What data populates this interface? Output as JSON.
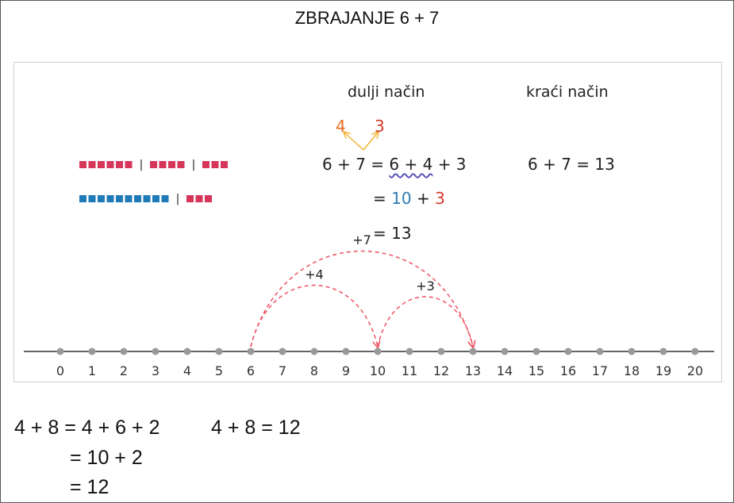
{
  "title": "ZBRAJANJE 6 + 7",
  "panel": {
    "long_way_label": "dulji način",
    "short_way_label": "kraći način",
    "split": {
      "left": "4",
      "right": "3"
    },
    "line1": {
      "lhs": "6 + 7 =",
      "wavy": "6 + 4",
      "rest": "+ 3"
    },
    "line2": {
      "eq": "=",
      "ten": "10",
      "plus": "+",
      "three": "3"
    },
    "line3": "= 13",
    "short_eq": "6 + 7 = 13",
    "blocks": {
      "row1_groups": [
        6,
        4,
        3
      ],
      "row2_groups": [
        10,
        3
      ],
      "separator": "|",
      "colors": {
        "red": "#d6365a",
        "blue": "#1f7bb8"
      }
    },
    "number_line": {
      "min": 0,
      "max": 20,
      "ticks": [
        "0",
        "1",
        "2",
        "3",
        "4",
        "5",
        "6",
        "7",
        "8",
        "9",
        "10",
        "11",
        "12",
        "13",
        "14",
        "15",
        "16",
        "17",
        "18",
        "19",
        "20"
      ],
      "jumps": [
        {
          "from": 6,
          "to": 13,
          "label": "+7"
        },
        {
          "from": 6,
          "to": 10,
          "label": "+4"
        },
        {
          "from": 10,
          "to": 13,
          "label": "+3"
        }
      ],
      "jump_color": "#ef5b6b"
    }
  },
  "bottom": {
    "line1_left": "4 + 8 = 4 + 6 + 2",
    "line1_right": "4 + 8 = 12",
    "line2": "= 10 + 2",
    "line3": "= 12"
  }
}
